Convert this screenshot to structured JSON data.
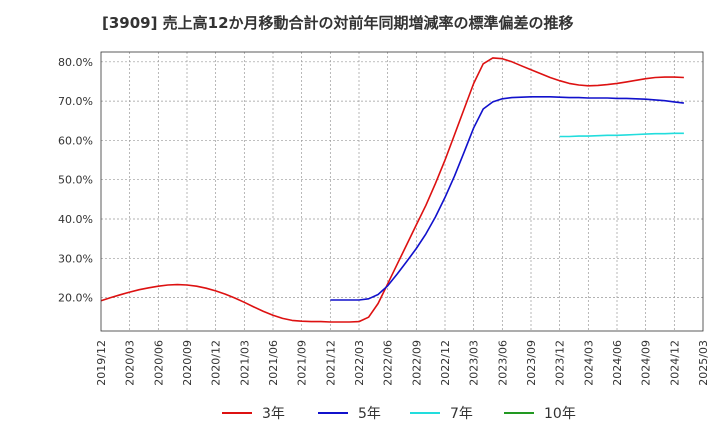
{
  "chart_data": {
    "type": "line",
    "title": "[3909]  売上高12か月移動合計の対前年同期増減率の標準偏差の推移",
    "xlabel": "",
    "ylabel": "",
    "ylim": [
      11.5,
      82.5
    ],
    "yticks": [
      20,
      30,
      40,
      50,
      60,
      70,
      80
    ],
    "ytick_labels": [
      "20.0%",
      "30.0%",
      "40.0%",
      "50.0%",
      "60.0%",
      "70.0%",
      "80.0%"
    ],
    "xlim_months": [
      0,
      63
    ],
    "xtick_months": [
      0,
      3,
      6,
      9,
      12,
      15,
      18,
      21,
      24,
      27,
      30,
      33,
      36,
      39,
      42,
      45,
      48,
      51,
      54,
      57,
      60,
      63
    ],
    "xtick_labels": [
      "2019/12",
      "2020/03",
      "2020/06",
      "2020/09",
      "2020/12",
      "2021/03",
      "2021/06",
      "2021/09",
      "2021/12",
      "2022/03",
      "2022/06",
      "2022/09",
      "2022/12",
      "2023/03",
      "2023/06",
      "2023/09",
      "2023/12",
      "2024/03",
      "2024/06",
      "2024/09",
      "2024/12",
      "2025/03"
    ],
    "grid": true,
    "legend_position": "bottom",
    "series": [
      {
        "name": "3年",
        "color": "#dd1111",
        "points": [
          [
            0,
            19.2
          ],
          [
            1,
            20.0
          ],
          [
            2,
            20.7
          ],
          [
            3,
            21.4
          ],
          [
            4,
            22.0
          ],
          [
            5,
            22.5
          ],
          [
            6,
            22.9
          ],
          [
            7,
            23.2
          ],
          [
            8,
            23.3
          ],
          [
            9,
            23.2
          ],
          [
            10,
            22.9
          ],
          [
            11,
            22.4
          ],
          [
            12,
            21.7
          ],
          [
            13,
            20.9
          ],
          [
            14,
            19.9
          ],
          [
            15,
            18.8
          ],
          [
            16,
            17.6
          ],
          [
            17,
            16.5
          ],
          [
            18,
            15.5
          ],
          [
            19,
            14.7
          ],
          [
            20,
            14.2
          ],
          [
            21,
            14.0
          ],
          [
            22,
            13.9
          ],
          [
            23,
            13.9
          ],
          [
            24,
            13.8
          ],
          [
            25,
            13.8
          ],
          [
            26,
            13.8
          ],
          [
            27,
            13.9
          ],
          [
            28,
            15.0
          ],
          [
            29,
            18.5
          ],
          [
            30,
            23.5
          ],
          [
            31,
            28.5
          ],
          [
            32,
            33.5
          ],
          [
            33,
            38.5
          ],
          [
            34,
            43.5
          ],
          [
            35,
            49.0
          ],
          [
            36,
            55.0
          ],
          [
            37,
            61.5
          ],
          [
            38,
            68.0
          ],
          [
            39,
            74.5
          ],
          [
            40,
            79.5
          ],
          [
            41,
            81.0
          ],
          [
            42,
            80.8
          ],
          [
            43,
            80.0
          ],
          [
            44,
            79.0
          ],
          [
            45,
            78.0
          ],
          [
            46,
            77.0
          ],
          [
            47,
            76.0
          ],
          [
            48,
            75.2
          ],
          [
            49,
            74.5
          ],
          [
            50,
            74.1
          ],
          [
            51,
            73.9
          ],
          [
            52,
            74.0
          ],
          [
            53,
            74.2
          ],
          [
            54,
            74.5
          ],
          [
            55,
            74.9
          ],
          [
            56,
            75.3
          ],
          [
            57,
            75.7
          ],
          [
            58,
            76.0
          ],
          [
            59,
            76.1
          ],
          [
            60,
            76.1
          ],
          [
            61,
            76.0
          ]
        ]
      },
      {
        "name": "5年",
        "color": "#1111cc",
        "points": [
          [
            24,
            19.4
          ],
          [
            25,
            19.4
          ],
          [
            26,
            19.4
          ],
          [
            27,
            19.4
          ],
          [
            28,
            19.7
          ],
          [
            29,
            20.8
          ],
          [
            30,
            23.0
          ],
          [
            31,
            26.0
          ],
          [
            32,
            29.2
          ],
          [
            33,
            32.5
          ],
          [
            34,
            36.2
          ],
          [
            35,
            40.5
          ],
          [
            36,
            45.5
          ],
          [
            37,
            51.0
          ],
          [
            38,
            57.0
          ],
          [
            39,
            63.2
          ],
          [
            40,
            68.0
          ],
          [
            41,
            69.8
          ],
          [
            42,
            70.6
          ],
          [
            43,
            70.9
          ],
          [
            44,
            71.0
          ],
          [
            45,
            71.1
          ],
          [
            46,
            71.1
          ],
          [
            47,
            71.1
          ],
          [
            48,
            71.0
          ],
          [
            49,
            70.9
          ],
          [
            50,
            70.9
          ],
          [
            51,
            70.8
          ],
          [
            52,
            70.8
          ],
          [
            53,
            70.8
          ],
          [
            54,
            70.7
          ],
          [
            55,
            70.7
          ],
          [
            56,
            70.6
          ],
          [
            57,
            70.5
          ],
          [
            58,
            70.3
          ],
          [
            59,
            70.1
          ],
          [
            60,
            69.8
          ],
          [
            61,
            69.5
          ]
        ]
      },
      {
        "name": "7年",
        "color": "#22dddd",
        "points": [
          [
            48,
            61.0
          ],
          [
            49,
            61.0
          ],
          [
            50,
            61.1
          ],
          [
            51,
            61.1
          ],
          [
            52,
            61.2
          ],
          [
            53,
            61.3
          ],
          [
            54,
            61.3
          ],
          [
            55,
            61.4
          ],
          [
            56,
            61.5
          ],
          [
            57,
            61.6
          ],
          [
            58,
            61.7
          ],
          [
            59,
            61.7
          ],
          [
            60,
            61.8
          ],
          [
            61,
            61.8
          ]
        ]
      },
      {
        "name": "10年",
        "color": "#229922",
        "points": []
      }
    ]
  }
}
